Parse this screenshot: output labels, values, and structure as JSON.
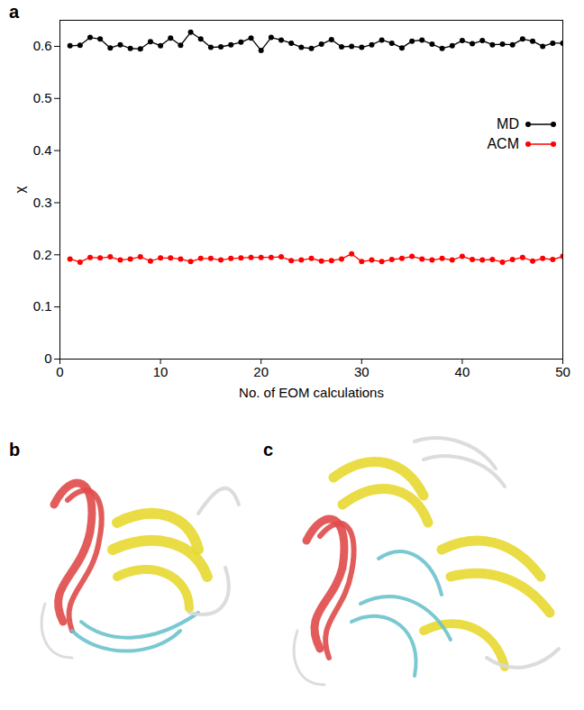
{
  "chart_data": {
    "type": "line",
    "x_label": "No. of EOM calculations",
    "y_label": "χ",
    "x": [
      1,
      2,
      3,
      4,
      5,
      6,
      7,
      8,
      9,
      10,
      11,
      12,
      13,
      14,
      15,
      16,
      17,
      18,
      19,
      20,
      21,
      22,
      23,
      24,
      25,
      26,
      27,
      28,
      29,
      30,
      31,
      32,
      33,
      34,
      35,
      36,
      37,
      38,
      39,
      40,
      41,
      42,
      43,
      44,
      45,
      46,
      47,
      48,
      49,
      50
    ],
    "series": [
      {
        "name": "MD",
        "color": "#000000",
        "marker": "circle",
        "values": [
          0.601,
          0.602,
          0.617,
          0.614,
          0.597,
          0.603,
          0.596,
          0.595,
          0.609,
          0.601,
          0.616,
          0.602,
          0.627,
          0.614,
          0.598,
          0.599,
          0.603,
          0.608,
          0.616,
          0.592,
          0.617,
          0.612,
          0.606,
          0.598,
          0.596,
          0.604,
          0.613,
          0.599,
          0.6,
          0.598,
          0.603,
          0.612,
          0.606,
          0.597,
          0.61,
          0.612,
          0.604,
          0.596,
          0.601,
          0.611,
          0.605,
          0.611,
          0.603,
          0.604,
          0.603,
          0.614,
          0.61,
          0.6,
          0.606,
          0.606
        ]
      },
      {
        "name": "ACM",
        "color": "#ff0000",
        "marker": "circle",
        "values": [
          0.192,
          0.186,
          0.195,
          0.194,
          0.196,
          0.19,
          0.192,
          0.196,
          0.188,
          0.194,
          0.194,
          0.192,
          0.187,
          0.193,
          0.193,
          0.19,
          0.193,
          0.194,
          0.195,
          0.195,
          0.195,
          0.196,
          0.189,
          0.19,
          0.193,
          0.188,
          0.189,
          0.192,
          0.202,
          0.187,
          0.19,
          0.187,
          0.191,
          0.193,
          0.197,
          0.192,
          0.19,
          0.193,
          0.19,
          0.197,
          0.191,
          0.19,
          0.191,
          0.186,
          0.191,
          0.195,
          0.188,
          0.193,
          0.191,
          0.197
        ]
      }
    ],
    "xlim": [
      0,
      50
    ],
    "xticks": [
      0,
      10,
      20,
      30,
      40,
      50
    ],
    "ylim": [
      0,
      0.65
    ],
    "yticks": [
      0,
      0.1,
      0.2,
      0.3,
      0.4,
      0.5,
      0.6
    ],
    "grid": false,
    "legend": "right"
  },
  "figure": {
    "panel_labels": [
      "a",
      "b",
      "c"
    ]
  }
}
